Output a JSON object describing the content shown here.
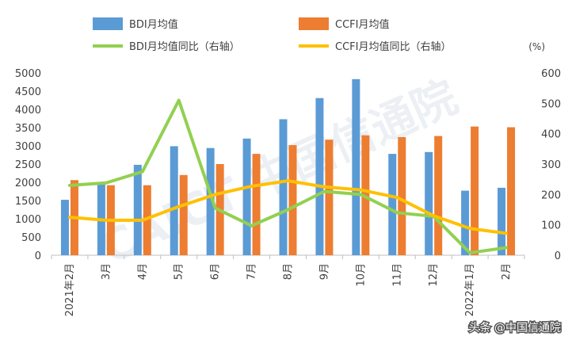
{
  "chart_data": {
    "type": "bar",
    "categories": [
      "2021年2月",
      "3月",
      "4月",
      "5月",
      "6月",
      "7月",
      "8月",
      "9月",
      "10月",
      "11月",
      "12月",
      "2022年1月",
      "2月"
    ],
    "series": [
      {
        "name": "BDI月均值",
        "type": "bar",
        "axis": "left",
        "color": "#5b9bd5",
        "values": [
          1520,
          1960,
          2480,
          2990,
          2940,
          3200,
          3730,
          4310,
          4830,
          2780,
          2830,
          1770,
          1850
        ]
      },
      {
        "name": "CCFI月均值",
        "type": "bar",
        "axis": "left",
        "color": "#ed7d31",
        "values": [
          2060,
          1920,
          1920,
          2200,
          2500,
          2780,
          3020,
          3170,
          3290,
          3240,
          3270,
          3530,
          3510
        ]
      },
      {
        "name": "BDI月均值同比（右轴）",
        "type": "line",
        "axis": "right",
        "color": "#92d050",
        "values": [
          230,
          238,
          275,
          510,
          155,
          97,
          150,
          210,
          200,
          140,
          128,
          8,
          25
        ]
      },
      {
        "name": "CCFI月均值同比（右轴）",
        "type": "line",
        "axis": "right",
        "color": "#ffc000",
        "values": [
          125,
          115,
          115,
          160,
          200,
          227,
          245,
          225,
          215,
          190,
          130,
          88,
          72
        ]
      }
    ],
    "yaxis_left": {
      "min": 0,
      "max": 5000,
      "step": 500,
      "ticks": [
        "0",
        "500",
        "1000",
        "1500",
        "2000",
        "2500",
        "3000",
        "3500",
        "4000",
        "4500",
        "5000"
      ]
    },
    "yaxis_right": {
      "min": 0,
      "max": 600,
      "step": 100,
      "unit": "(%)",
      "ticks": [
        "0",
        "100",
        "200",
        "300",
        "400",
        "500",
        "600"
      ]
    },
    "grid": false,
    "legend_position": "top"
  },
  "watermark": "CAICT 中国信通院",
  "credit": "头条 @中国信通院"
}
